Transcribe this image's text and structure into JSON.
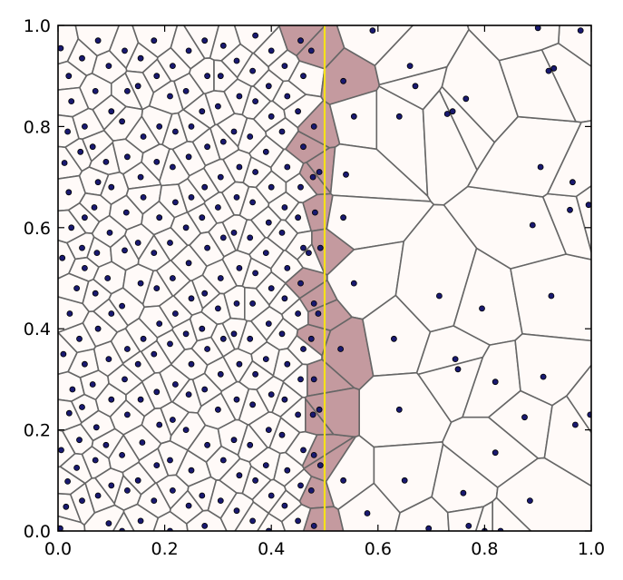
{
  "chart_data": {
    "type": "scatter",
    "title": "",
    "xlabel": "",
    "ylabel": "",
    "xlim": [
      0.0,
      1.0
    ],
    "ylim": [
      0.0,
      1.0
    ],
    "x_ticks": [
      "0.0",
      "0.2",
      "0.4",
      "0.6",
      "0.8",
      "1.0"
    ],
    "y_ticks": [
      "0.0",
      "0.2",
      "0.4",
      "0.6",
      "0.8",
      "1.0"
    ],
    "x_tick_values": [
      0.0,
      0.2,
      0.4,
      0.6,
      0.8,
      1.0
    ],
    "y_tick_values": [
      0.0,
      0.2,
      0.4,
      0.6,
      0.8,
      1.0
    ],
    "grid": false,
    "overlay": "voronoi diagram of the scatter points; cells intersecting the vertical line are shaded",
    "vertical_line": {
      "x": 0.5,
      "color": "#f5e11a"
    },
    "colors": {
      "cell_fill": "#fffaf8",
      "highlight_fill": "#c49a9f",
      "edge": "#666666",
      "point_fill": "#191970",
      "axes": "#000000"
    },
    "points": [
      [
        0.005,
        0.955
      ],
      [
        0.012,
        0.728
      ],
      [
        0.008,
        0.54
      ],
      [
        0.01,
        0.35
      ],
      [
        0.006,
        0.16
      ],
      [
        0.015,
        0.048
      ],
      [
        0.004,
        0.005
      ],
      [
        0.02,
        0.9
      ],
      [
        0.025,
        0.85
      ],
      [
        0.018,
        0.79
      ],
      [
        0.02,
        0.67
      ],
      [
        0.025,
        0.6
      ],
      [
        0.022,
        0.43
      ],
      [
        0.027,
        0.28
      ],
      [
        0.021,
        0.233
      ],
      [
        0.018,
        0.098
      ],
      [
        0.045,
        0.935
      ],
      [
        0.05,
        0.8
      ],
      [
        0.042,
        0.75
      ],
      [
        0.05,
        0.62
      ],
      [
        0.045,
        0.56
      ],
      [
        0.05,
        0.52
      ],
      [
        0.035,
        0.48
      ],
      [
        0.04,
        0.38
      ],
      [
        0.05,
        0.33
      ],
      [
        0.045,
        0.245
      ],
      [
        0.04,
        0.18
      ],
      [
        0.035,
        0.125
      ],
      [
        0.045,
        0.06
      ],
      [
        0.075,
        0.97
      ],
      [
        0.07,
        0.87
      ],
      [
        0.065,
        0.76
      ],
      [
        0.075,
        0.69
      ],
      [
        0.068,
        0.64
      ],
      [
        0.073,
        0.55
      ],
      [
        0.07,
        0.47
      ],
      [
        0.075,
        0.4
      ],
      [
        0.065,
        0.29
      ],
      [
        0.072,
        0.205
      ],
      [
        0.07,
        0.14
      ],
      [
        0.075,
        0.07
      ],
      [
        0.095,
        0.92
      ],
      [
        0.1,
        0.83
      ],
      [
        0.09,
        0.73
      ],
      [
        0.1,
        0.68
      ],
      [
        0.097,
        0.59
      ],
      [
        0.093,
        0.5
      ],
      [
        0.1,
        0.43
      ],
      [
        0.095,
        0.34
      ],
      [
        0.1,
        0.26
      ],
      [
        0.09,
        0.17
      ],
      [
        0.1,
        0.09
      ],
      [
        0.095,
        0.015
      ],
      [
        0.125,
        0.95
      ],
      [
        0.13,
        0.87
      ],
      [
        0.12,
        0.81
      ],
      [
        0.13,
        0.74
      ],
      [
        0.128,
        0.63
      ],
      [
        0.125,
        0.555
      ],
      [
        0.12,
        0.445
      ],
      [
        0.13,
        0.36
      ],
      [
        0.125,
        0.3
      ],
      [
        0.13,
        0.23
      ],
      [
        0.12,
        0.15
      ],
      [
        0.13,
        0.08
      ],
      [
        0.12,
        0.0
      ],
      [
        0.155,
        0.935
      ],
      [
        0.15,
        0.88
      ],
      [
        0.16,
        0.78
      ],
      [
        0.155,
        0.7
      ],
      [
        0.16,
        0.66
      ],
      [
        0.15,
        0.57
      ],
      [
        0.155,
        0.49
      ],
      [
        0.16,
        0.38
      ],
      [
        0.15,
        0.33
      ],
      [
        0.155,
        0.26
      ],
      [
        0.158,
        0.175
      ],
      [
        0.15,
        0.1
      ],
      [
        0.155,
        0.02
      ],
      [
        0.18,
        0.97
      ],
      [
        0.185,
        0.9
      ],
      [
        0.19,
        0.8
      ],
      [
        0.185,
        0.73
      ],
      [
        0.19,
        0.62
      ],
      [
        0.18,
        0.55
      ],
      [
        0.185,
        0.48
      ],
      [
        0.19,
        0.41
      ],
      [
        0.18,
        0.35
      ],
      [
        0.185,
        0.275
      ],
      [
        0.19,
        0.21
      ],
      [
        0.185,
        0.13
      ],
      [
        0.18,
        0.06
      ],
      [
        0.215,
        0.92
      ],
      [
        0.21,
        0.86
      ],
      [
        0.22,
        0.79
      ],
      [
        0.215,
        0.72
      ],
      [
        0.22,
        0.65
      ],
      [
        0.21,
        0.57
      ],
      [
        0.215,
        0.5
      ],
      [
        0.22,
        0.43
      ],
      [
        0.21,
        0.37
      ],
      [
        0.22,
        0.29
      ],
      [
        0.215,
        0.22
      ],
      [
        0.21,
        0.14
      ],
      [
        0.215,
        0.08
      ],
      [
        0.21,
        0.0
      ],
      [
        0.245,
        0.95
      ],
      [
        0.24,
        0.87
      ],
      [
        0.25,
        0.8
      ],
      [
        0.245,
        0.74
      ],
      [
        0.25,
        0.66
      ],
      [
        0.24,
        0.6
      ],
      [
        0.245,
        0.53
      ],
      [
        0.25,
        0.46
      ],
      [
        0.24,
        0.39
      ],
      [
        0.25,
        0.33
      ],
      [
        0.245,
        0.27
      ],
      [
        0.24,
        0.2
      ],
      [
        0.25,
        0.12
      ],
      [
        0.245,
        0.05
      ],
      [
        0.275,
        0.97
      ],
      [
        0.28,
        0.9
      ],
      [
        0.27,
        0.83
      ],
      [
        0.28,
        0.76
      ],
      [
        0.275,
        0.68
      ],
      [
        0.27,
        0.62
      ],
      [
        0.28,
        0.56
      ],
      [
        0.275,
        0.47
      ],
      [
        0.27,
        0.4
      ],
      [
        0.28,
        0.36
      ],
      [
        0.275,
        0.28
      ],
      [
        0.28,
        0.17
      ],
      [
        0.27,
        0.07
      ],
      [
        0.275,
        0.01
      ],
      [
        0.31,
        0.96
      ],
      [
        0.305,
        0.9
      ],
      [
        0.3,
        0.84
      ],
      [
        0.31,
        0.77
      ],
      [
        0.305,
        0.7
      ],
      [
        0.3,
        0.64
      ],
      [
        0.31,
        0.58
      ],
      [
        0.305,
        0.5
      ],
      [
        0.3,
        0.44
      ],
      [
        0.31,
        0.38
      ],
      [
        0.305,
        0.31
      ],
      [
        0.3,
        0.24
      ],
      [
        0.31,
        0.14
      ],
      [
        0.305,
        0.06
      ],
      [
        0.335,
        0.93
      ],
      [
        0.34,
        0.86
      ],
      [
        0.33,
        0.79
      ],
      [
        0.34,
        0.72
      ],
      [
        0.335,
        0.66
      ],
      [
        0.33,
        0.59
      ],
      [
        0.34,
        0.52
      ],
      [
        0.335,
        0.45
      ],
      [
        0.33,
        0.39
      ],
      [
        0.34,
        0.33
      ],
      [
        0.335,
        0.26
      ],
      [
        0.33,
        0.18
      ],
      [
        0.34,
        0.11
      ],
      [
        0.335,
        0.04
      ],
      [
        0.37,
        0.98
      ],
      [
        0.365,
        0.91
      ],
      [
        0.37,
        0.85
      ],
      [
        0.36,
        0.78
      ],
      [
        0.37,
        0.71
      ],
      [
        0.365,
        0.65
      ],
      [
        0.36,
        0.58
      ],
      [
        0.37,
        0.51
      ],
      [
        0.365,
        0.45
      ],
      [
        0.36,
        0.38
      ],
      [
        0.37,
        0.31
      ],
      [
        0.365,
        0.25
      ],
      [
        0.36,
        0.17
      ],
      [
        0.37,
        0.1
      ],
      [
        0.365,
        0.02
      ],
      [
        0.4,
        0.95
      ],
      [
        0.395,
        0.88
      ],
      [
        0.4,
        0.82
      ],
      [
        0.39,
        0.75
      ],
      [
        0.4,
        0.68
      ],
      [
        0.395,
        0.61
      ],
      [
        0.39,
        0.55
      ],
      [
        0.4,
        0.48
      ],
      [
        0.395,
        0.41
      ],
      [
        0.39,
        0.34
      ],
      [
        0.4,
        0.27
      ],
      [
        0.395,
        0.2
      ],
      [
        0.39,
        0.13
      ],
      [
        0.4,
        0.07
      ],
      [
        0.395,
        0.0
      ],
      [
        0.425,
        0.92
      ],
      [
        0.43,
        0.86
      ],
      [
        0.42,
        0.79
      ],
      [
        0.43,
        0.72
      ],
      [
        0.425,
        0.64
      ],
      [
        0.42,
        0.59
      ],
      [
        0.43,
        0.52
      ],
      [
        0.425,
        0.46
      ],
      [
        0.42,
        0.39
      ],
      [
        0.43,
        0.33
      ],
      [
        0.425,
        0.26
      ],
      [
        0.42,
        0.19
      ],
      [
        0.43,
        0.12
      ],
      [
        0.425,
        0.05
      ],
      [
        0.455,
        0.97
      ],
      [
        0.46,
        0.9
      ],
      [
        0.45,
        0.83
      ],
      [
        0.46,
        0.76
      ],
      [
        0.455,
        0.68
      ],
      [
        0.45,
        0.62
      ],
      [
        0.46,
        0.56
      ],
      [
        0.455,
        0.49
      ],
      [
        0.45,
        0.43
      ],
      [
        0.46,
        0.36
      ],
      [
        0.455,
        0.3
      ],
      [
        0.45,
        0.23
      ],
      [
        0.46,
        0.16
      ],
      [
        0.455,
        0.09
      ],
      [
        0.45,
        0.02
      ],
      [
        0.475,
        0.95
      ],
      [
        0.48,
        0.8
      ],
      [
        0.478,
        0.7
      ],
      [
        0.482,
        0.63
      ],
      [
        0.47,
        0.55
      ],
      [
        0.48,
        0.45
      ],
      [
        0.475,
        0.38
      ],
      [
        0.48,
        0.3
      ],
      [
        0.478,
        0.23
      ],
      [
        0.48,
        0.15
      ],
      [
        0.475,
        0.08
      ],
      [
        0.48,
        0.01
      ],
      [
        0.49,
        0.71
      ],
      [
        0.492,
        0.56
      ],
      [
        0.488,
        0.43
      ],
      [
        0.49,
        0.24
      ],
      [
        0.492,
        0.13
      ],
      [
        0.535,
        0.89
      ],
      [
        0.555,
        0.82
      ],
      [
        0.54,
        0.705
      ],
      [
        0.535,
        0.62
      ],
      [
        0.555,
        0.49
      ],
      [
        0.53,
        0.36
      ],
      [
        0.535,
        0.1
      ],
      [
        0.59,
        0.99
      ],
      [
        0.58,
        0.035
      ],
      [
        0.63,
        0.38
      ],
      [
        0.64,
        0.82
      ],
      [
        0.64,
        0.24
      ],
      [
        0.65,
        0.1
      ],
      [
        0.66,
        0.92
      ],
      [
        0.67,
        0.88
      ],
      [
        0.695,
        0.005
      ],
      [
        0.715,
        0.465
      ],
      [
        0.73,
        0.825
      ],
      [
        0.74,
        0.83
      ],
      [
        0.745,
        0.34
      ],
      [
        0.75,
        0.32
      ],
      [
        0.765,
        0.855
      ],
      [
        0.76,
        0.075
      ],
      [
        0.77,
        0.01
      ],
      [
        0.8,
        0.0
      ],
      [
        0.795,
        0.44
      ],
      [
        0.82,
        0.155
      ],
      [
        0.82,
        0.295
      ],
      [
        0.83,
        0.0
      ],
      [
        0.89,
        0.605
      ],
      [
        0.885,
        0.06
      ],
      [
        0.875,
        0.225
      ],
      [
        0.925,
        0.465
      ],
      [
        0.91,
        0.305
      ],
      [
        0.905,
        0.72
      ],
      [
        0.92,
        0.91
      ],
      [
        0.93,
        0.915
      ],
      [
        0.96,
        0.635
      ],
      [
        0.965,
        0.69
      ],
      [
        0.97,
        0.21
      ],
      [
        0.98,
        0.99
      ],
      [
        0.995,
        0.645
      ],
      [
        0.998,
        0.23
      ],
      [
        0.9,
        0.995
      ]
    ]
  }
}
